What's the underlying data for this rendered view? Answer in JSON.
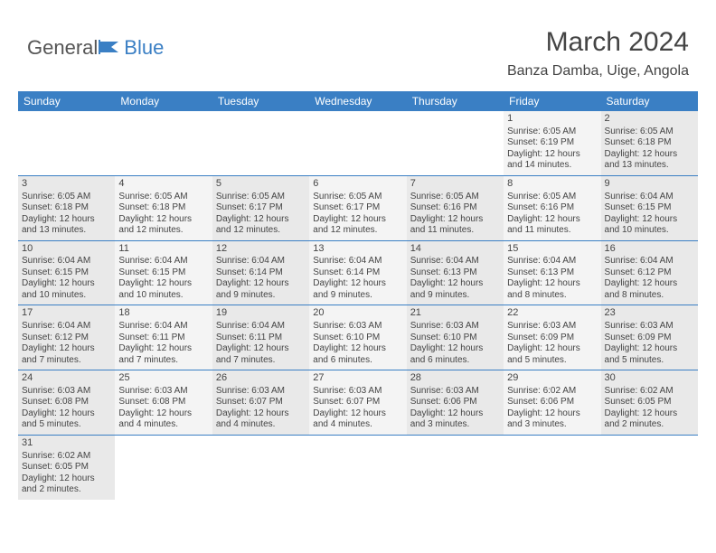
{
  "logo": {
    "part1": "General",
    "part2": "Blue"
  },
  "title": "March 2024",
  "location": "Banza Damba, Uige, Angola",
  "weekdays": [
    "Sunday",
    "Monday",
    "Tuesday",
    "Wednesday",
    "Thursday",
    "Friday",
    "Saturday"
  ],
  "colors": {
    "header_bg": "#3a7fc4",
    "shade0": "#e9e9e9",
    "shade1": "#f4f4f4",
    "rule": "#3a7fc4"
  },
  "days": {
    "1": {
      "sunrise": "6:05 AM",
      "sunset": "6:19 PM",
      "daylight": "12 hours and 14 minutes."
    },
    "2": {
      "sunrise": "6:05 AM",
      "sunset": "6:18 PM",
      "daylight": "12 hours and 13 minutes."
    },
    "3": {
      "sunrise": "6:05 AM",
      "sunset": "6:18 PM",
      "daylight": "12 hours and 13 minutes."
    },
    "4": {
      "sunrise": "6:05 AM",
      "sunset": "6:18 PM",
      "daylight": "12 hours and 12 minutes."
    },
    "5": {
      "sunrise": "6:05 AM",
      "sunset": "6:17 PM",
      "daylight": "12 hours and 12 minutes."
    },
    "6": {
      "sunrise": "6:05 AM",
      "sunset": "6:17 PM",
      "daylight": "12 hours and 12 minutes."
    },
    "7": {
      "sunrise": "6:05 AM",
      "sunset": "6:16 PM",
      "daylight": "12 hours and 11 minutes."
    },
    "8": {
      "sunrise": "6:05 AM",
      "sunset": "6:16 PM",
      "daylight": "12 hours and 11 minutes."
    },
    "9": {
      "sunrise": "6:04 AM",
      "sunset": "6:15 PM",
      "daylight": "12 hours and 10 minutes."
    },
    "10": {
      "sunrise": "6:04 AM",
      "sunset": "6:15 PM",
      "daylight": "12 hours and 10 minutes."
    },
    "11": {
      "sunrise": "6:04 AM",
      "sunset": "6:15 PM",
      "daylight": "12 hours and 10 minutes."
    },
    "12": {
      "sunrise": "6:04 AM",
      "sunset": "6:14 PM",
      "daylight": "12 hours and 9 minutes."
    },
    "13": {
      "sunrise": "6:04 AM",
      "sunset": "6:14 PM",
      "daylight": "12 hours and 9 minutes."
    },
    "14": {
      "sunrise": "6:04 AM",
      "sunset": "6:13 PM",
      "daylight": "12 hours and 9 minutes."
    },
    "15": {
      "sunrise": "6:04 AM",
      "sunset": "6:13 PM",
      "daylight": "12 hours and 8 minutes."
    },
    "16": {
      "sunrise": "6:04 AM",
      "sunset": "6:12 PM",
      "daylight": "12 hours and 8 minutes."
    },
    "17": {
      "sunrise": "6:04 AM",
      "sunset": "6:12 PM",
      "daylight": "12 hours and 7 minutes."
    },
    "18": {
      "sunrise": "6:04 AM",
      "sunset": "6:11 PM",
      "daylight": "12 hours and 7 minutes."
    },
    "19": {
      "sunrise": "6:04 AM",
      "sunset": "6:11 PM",
      "daylight": "12 hours and 7 minutes."
    },
    "20": {
      "sunrise": "6:03 AM",
      "sunset": "6:10 PM",
      "daylight": "12 hours and 6 minutes."
    },
    "21": {
      "sunrise": "6:03 AM",
      "sunset": "6:10 PM",
      "daylight": "12 hours and 6 minutes."
    },
    "22": {
      "sunrise": "6:03 AM",
      "sunset": "6:09 PM",
      "daylight": "12 hours and 5 minutes."
    },
    "23": {
      "sunrise": "6:03 AM",
      "sunset": "6:09 PM",
      "daylight": "12 hours and 5 minutes."
    },
    "24": {
      "sunrise": "6:03 AM",
      "sunset": "6:08 PM",
      "daylight": "12 hours and 5 minutes."
    },
    "25": {
      "sunrise": "6:03 AM",
      "sunset": "6:08 PM",
      "daylight": "12 hours and 4 minutes."
    },
    "26": {
      "sunrise": "6:03 AM",
      "sunset": "6:07 PM",
      "daylight": "12 hours and 4 minutes."
    },
    "27": {
      "sunrise": "6:03 AM",
      "sunset": "6:07 PM",
      "daylight": "12 hours and 4 minutes."
    },
    "28": {
      "sunrise": "6:03 AM",
      "sunset": "6:06 PM",
      "daylight": "12 hours and 3 minutes."
    },
    "29": {
      "sunrise": "6:02 AM",
      "sunset": "6:06 PM",
      "daylight": "12 hours and 3 minutes."
    },
    "30": {
      "sunrise": "6:02 AM",
      "sunset": "6:05 PM",
      "daylight": "12 hours and 2 minutes."
    },
    "31": {
      "sunrise": "6:02 AM",
      "sunset": "6:05 PM",
      "daylight": "12 hours and 2 minutes."
    }
  },
  "grid": [
    [
      null,
      null,
      null,
      null,
      null,
      1,
      2
    ],
    [
      3,
      4,
      5,
      6,
      7,
      8,
      9
    ],
    [
      10,
      11,
      12,
      13,
      14,
      15,
      16
    ],
    [
      17,
      18,
      19,
      20,
      21,
      22,
      23
    ],
    [
      24,
      25,
      26,
      27,
      28,
      29,
      30
    ],
    [
      31,
      null,
      null,
      null,
      null,
      null,
      null
    ]
  ],
  "labels": {
    "sunrise": "Sunrise: ",
    "sunset": "Sunset: ",
    "daylight": "Daylight: "
  }
}
